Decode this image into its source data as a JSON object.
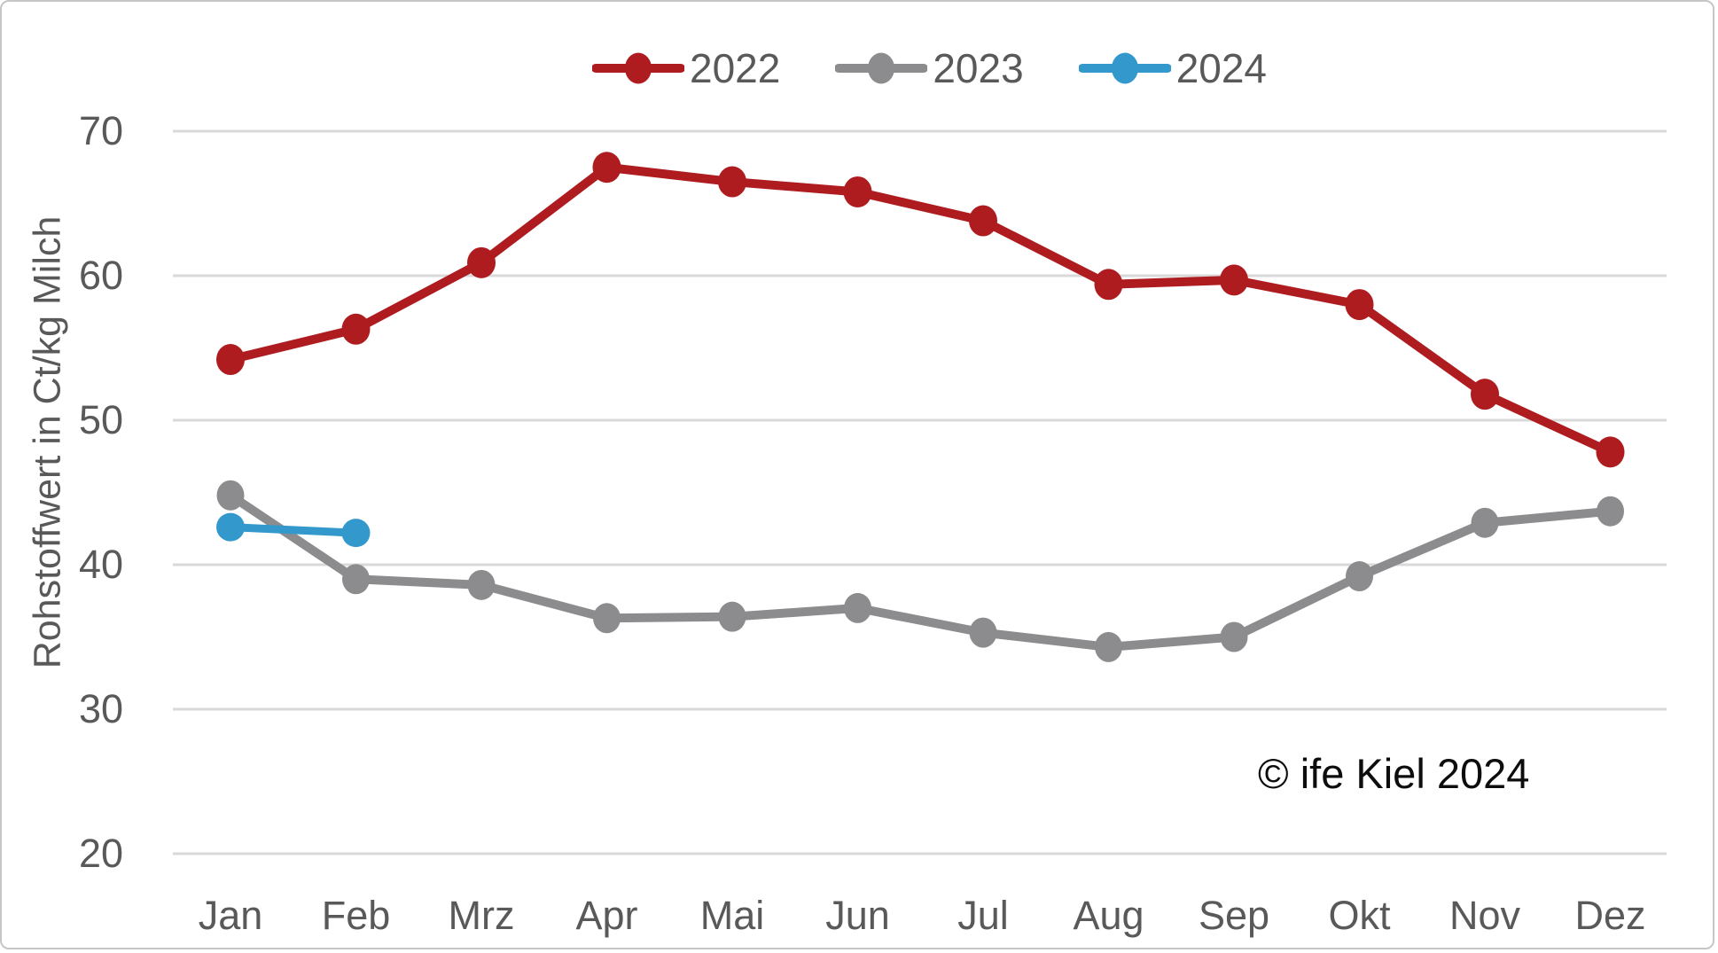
{
  "y_axis_title": "Rohstoffwert in Ct/kg Milch",
  "copyright_note": "© ife Kiel 2024",
  "chart_data": {
    "type": "line",
    "title": "",
    "xlabel": "",
    "ylabel": "Rohstoffwert in Ct/kg Milch",
    "categories": [
      "Jan",
      "Feb",
      "Mrz",
      "Apr",
      "Mai",
      "Jun",
      "Jul",
      "Aug",
      "Sep",
      "Okt",
      "Nov",
      "Dez"
    ],
    "series": [
      {
        "name": "2022",
        "color": "#AE1C1F",
        "values": [
          54.2,
          56.3,
          60.9,
          67.5,
          66.5,
          65.8,
          63.8,
          59.4,
          59.7,
          58.0,
          51.8,
          47.8
        ]
      },
      {
        "name": "2023",
        "color": "#8C8C8F",
        "values": [
          44.8,
          39.0,
          38.6,
          36.3,
          36.4,
          37.0,
          35.3,
          34.3,
          35.0,
          39.2,
          42.9,
          43.7
        ]
      },
      {
        "name": "2024",
        "color": "#3399CC",
        "values": [
          42.6,
          42.2,
          null,
          null,
          null,
          null,
          null,
          null,
          null,
          null,
          null,
          null
        ]
      }
    ],
    "ylim": [
      20,
      70
    ],
    "yticks": [
      70,
      60,
      50,
      40,
      30,
      20
    ],
    "grid": true,
    "gridline_color": "#D9D9D9",
    "axis_text_color": "#595959",
    "legend_position": "top",
    "marker": "circle"
  }
}
